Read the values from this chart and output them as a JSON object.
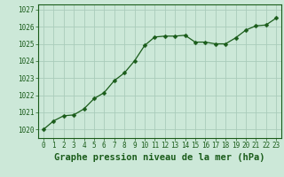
{
  "x": [
    0,
    1,
    2,
    3,
    4,
    5,
    6,
    7,
    8,
    9,
    10,
    11,
    12,
    13,
    14,
    15,
    16,
    17,
    18,
    19,
    20,
    21,
    22,
    23
  ],
  "y": [
    1020.0,
    1020.5,
    1020.8,
    1020.85,
    1021.2,
    1021.8,
    1022.15,
    1022.85,
    1023.3,
    1024.0,
    1024.9,
    1025.4,
    1025.45,
    1025.45,
    1025.5,
    1025.1,
    1025.1,
    1025.0,
    1025.0,
    1025.35,
    1025.8,
    1026.05,
    1026.1,
    1026.5
  ],
  "line_color": "#1a5c1a",
  "marker": "D",
  "marker_size": 2.5,
  "bg_color": "#cce8d8",
  "plot_bg_color": "#cce8d8",
  "grid_color": "#aaccbb",
  "xlabel": "Graphe pression niveau de la mer (hPa)",
  "xlabel_color": "#1a5c1a",
  "border_color": "#1a5c1a",
  "ylim": [
    1019.5,
    1027.3
  ],
  "xlim": [
    -0.5,
    23.5
  ],
  "yticks": [
    1020,
    1021,
    1022,
    1023,
    1024,
    1025,
    1026,
    1027
  ],
  "xticks": [
    0,
    1,
    2,
    3,
    4,
    5,
    6,
    7,
    8,
    9,
    10,
    11,
    12,
    13,
    14,
    15,
    16,
    17,
    18,
    19,
    20,
    21,
    22,
    23
  ],
  "tick_label_fontsize": 5.5,
  "xlabel_fontsize": 7.5,
  "bottom_bg": "#ffffff"
}
